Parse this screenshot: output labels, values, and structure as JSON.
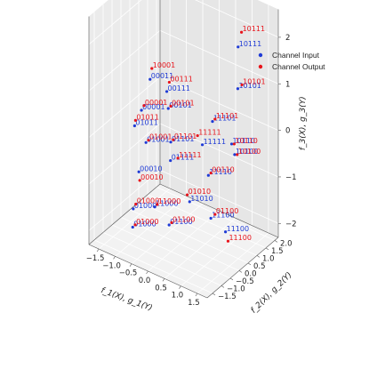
{
  "chart_data": {
    "type": "scatter",
    "projection": "3d",
    "xlabel": "f_1(X),  g_1(Y)",
    "ylabel": "f_2(X),  g_2(Y)",
    "zlabel": "f_3(X),  g_3(Y)",
    "xlim": [
      -1.8,
      1.8
    ],
    "ylim": [
      -1.8,
      2.2
    ],
    "zlim": [
      -2.3,
      2.6
    ],
    "xticks": [
      -1.5,
      -1.0,
      -0.5,
      0.0,
      0.5,
      1.0,
      1.5
    ],
    "yticks": [
      -1.5,
      -1.0,
      -0.5,
      0.0,
      0.5,
      1.0,
      1.5,
      2.0
    ],
    "zticks": [
      -2,
      -1,
      0,
      1,
      2
    ],
    "xtick_labels": [
      "−1.5",
      "−1.0",
      "−0.5",
      "0.0",
      "0.5",
      "1.0",
      "1.5"
    ],
    "ytick_labels": [
      "−1.5",
      "−1.0",
      "−0.5",
      "0.0",
      "0.5",
      "1.0",
      "1.5",
      "2.0"
    ],
    "ztick_labels": [
      "−2",
      "−1",
      "0",
      "1",
      "2"
    ],
    "grid": true,
    "legend_position": "top-right",
    "series": [
      {
        "name": "Channel Input",
        "color": "#1f3bd6",
        "points": [
          {
            "label": "10111",
            "x": 0.9,
            "y": 1.6,
            "z": 1.7
          },
          {
            "label": "10101",
            "x": 1.0,
            "y": 1.4,
            "z": 0.9
          },
          {
            "label": "00011",
            "x": -1.4,
            "y": 0.9,
            "z": 0.5
          },
          {
            "label": "00111",
            "x": -1.0,
            "y": 1.1,
            "z": 0.3
          },
          {
            "label": "00101",
            "x": -0.9,
            "y": 1.0,
            "z": 0.0
          },
          {
            "label": "00001",
            "x": -1.5,
            "y": 0.6,
            "z": -0.1
          },
          {
            "label": "01011",
            "x": -1.6,
            "y": 0.4,
            "z": -0.4
          },
          {
            "label": "11101",
            "x": 0.5,
            "y": 0.9,
            "z": 0.2
          },
          {
            "label": "11111",
            "x": 0.3,
            "y": 0.7,
            "z": -0.3
          },
          {
            "label": "10110",
            "x": 1.3,
            "y": 0.5,
            "z": 0.1
          },
          {
            "label": "10100",
            "x": 1.5,
            "y": 0.3,
            "z": 0.0
          },
          {
            "label": "01001",
            "x": -1.2,
            "y": 0.3,
            "z": -0.6
          },
          {
            "label": "01101",
            "x": -0.5,
            "y": 0.4,
            "z": -0.4
          },
          {
            "label": "01111",
            "x": -0.4,
            "y": 0.2,
            "z": -0.7
          },
          {
            "label": "11110",
            "x": 0.7,
            "y": 0.3,
            "z": -0.7
          },
          {
            "label": "00010",
            "x": -1.2,
            "y": -0.1,
            "z": -1.1
          },
          {
            "label": "11010",
            "x": 0.4,
            "y": -0.2,
            "z": -1.2
          },
          {
            "label": "11100",
            "x": 1.1,
            "y": -0.3,
            "z": -1.3
          },
          {
            "label": "11100",
            "x": 1.6,
            "y": -0.4,
            "z": -1.4
          },
          {
            "label": "11000",
            "x": -0.5,
            "y": -0.5,
            "z": -1.5
          },
          {
            "label": "01000",
            "x": -1.1,
            "y": -0.6,
            "z": -1.7
          },
          {
            "label": "01100",
            "x": 0.1,
            "y": -0.8,
            "z": -1.6
          },
          {
            "label": "01000",
            "x": -0.9,
            "y": -1.0,
            "z": -1.9
          }
        ]
      },
      {
        "name": "Channel Output",
        "color": "#e8141b",
        "points": [
          {
            "label": "10111",
            "x": 0.95,
            "y": 1.7,
            "z": 2.0
          },
          {
            "label": "10101",
            "x": 1.1,
            "y": 1.45,
            "z": 1.0
          },
          {
            "label": "10001",
            "x": -1.4,
            "y": 1.0,
            "z": 0.7
          },
          {
            "label": "00111",
            "x": -0.95,
            "y": 1.15,
            "z": 0.5
          },
          {
            "label": "00101",
            "x": -0.85,
            "y": 1.05,
            "z": 0.05
          },
          {
            "label": "00001",
            "x": -1.45,
            "y": 0.65,
            "z": 0.0
          },
          {
            "label": "01011",
            "x": -1.6,
            "y": 0.45,
            "z": -0.3
          },
          {
            "label": "11101",
            "x": 0.55,
            "y": 0.95,
            "z": 0.25
          },
          {
            "label": "11111",
            "x": 0.1,
            "y": 0.8,
            "z": -0.2
          },
          {
            "label": "10110",
            "x": 1.35,
            "y": 0.55,
            "z": 0.1
          },
          {
            "label": "10100",
            "x": 1.55,
            "y": 0.35,
            "z": 0.0
          },
          {
            "label": "01001",
            "x": -1.15,
            "y": 0.35,
            "z": -0.55
          },
          {
            "label": "01101",
            "x": -0.45,
            "y": 0.45,
            "z": -0.35
          },
          {
            "label": "11111",
            "x": -0.2,
            "y": 0.25,
            "z": -0.6
          },
          {
            "label": "00110",
            "x": 0.75,
            "y": 0.35,
            "z": -0.65
          },
          {
            "label": "00010",
            "x": -1.2,
            "y": -0.05,
            "z": -1.3
          },
          {
            "label": "01010",
            "x": 0.3,
            "y": -0.15,
            "z": -1.1
          },
          {
            "label": "01100",
            "x": 1.2,
            "y": -0.25,
            "z": -1.2
          },
          {
            "label": "11100",
            "x": 1.65,
            "y": -0.35,
            "z": -1.6
          },
          {
            "label": "11000",
            "x": -0.45,
            "y": -0.45,
            "z": -1.45
          },
          {
            "label": "01000",
            "x": -1.05,
            "y": -0.55,
            "z": -1.6
          },
          {
            "label": "01100",
            "x": 0.15,
            "y": -0.75,
            "z": -1.55
          },
          {
            "label": "01000",
            "x": -0.85,
            "y": -0.95,
            "z": -1.85
          }
        ]
      }
    ]
  }
}
